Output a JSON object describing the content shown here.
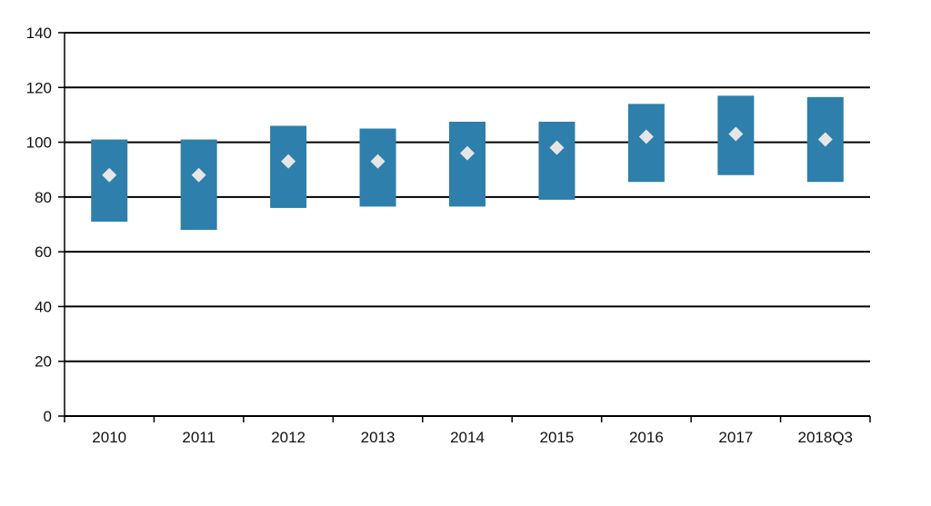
{
  "chart_data": {
    "type": "bar",
    "subtype": "floating-range-with-marker",
    "categories": [
      "2010",
      "2011",
      "2012",
      "2013",
      "2014",
      "2015",
      "2016",
      "2017",
      "2018Q3"
    ],
    "series": [
      {
        "low": [
          71,
          68,
          76,
          76.5,
          76.5,
          79,
          85.5,
          88,
          85.5
        ],
        "high": [
          101,
          101,
          106,
          105,
          107.5,
          107.5,
          114,
          117,
          116.5
        ],
        "marker": [
          88,
          88,
          93,
          93,
          96,
          98,
          102,
          103,
          101
        ]
      }
    ],
    "yticks": [
      "0",
      "20",
      "40",
      "60",
      "80",
      "100",
      "120",
      "140"
    ],
    "ylim": [
      0,
      140
    ],
    "grid": true,
    "legend": "none",
    "colors": {
      "bar": "#2e7fab",
      "marker": "#e6e6e6",
      "grid": "#000000",
      "text": "#111111"
    }
  }
}
